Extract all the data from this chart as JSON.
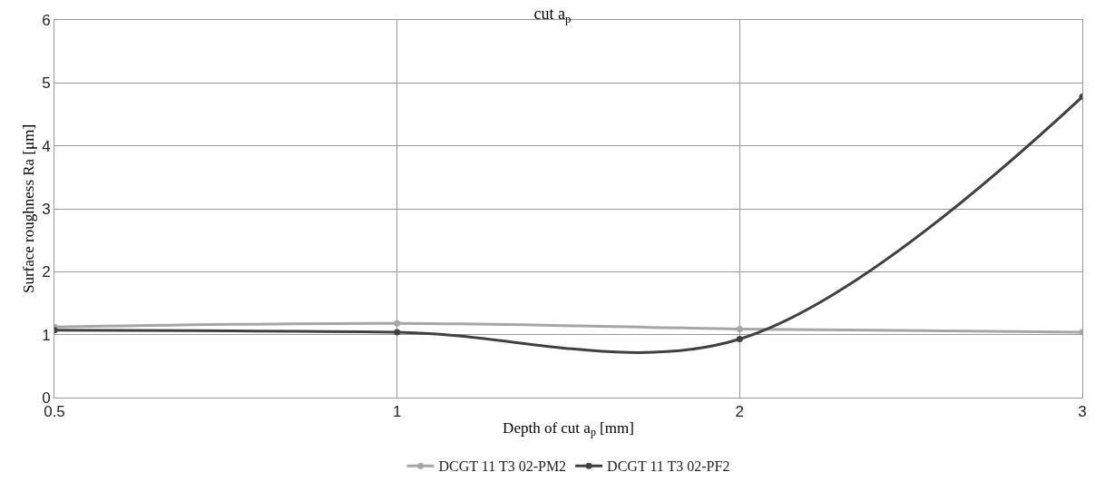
{
  "chart_data": {
    "type": "line",
    "title": "cut a$_{p}$",
    "xlabel": "Depth of cut a$_{p}$ [mm]",
    "ylabel": "Surface roughness Ra [μm]",
    "categories": [
      "0.5",
      "1",
      "2",
      "3"
    ],
    "series": [
      {
        "name": "DCGT 11 T3 02-PM2",
        "color": "#a6a6a6",
        "values": [
          1.12,
          1.18,
          1.09,
          1.04
        ]
      },
      {
        "name": "DCGT 11 T3 02-PF2",
        "color": "#404040",
        "values": [
          1.07,
          1.04,
          0.93,
          4.78
        ]
      }
    ],
    "ylim": [
      0,
      6
    ],
    "yticks": [
      0,
      1,
      2,
      3,
      4,
      5,
      6
    ],
    "grid": true,
    "legend": "bottom",
    "marker": "circle",
    "line_style": "solid"
  }
}
